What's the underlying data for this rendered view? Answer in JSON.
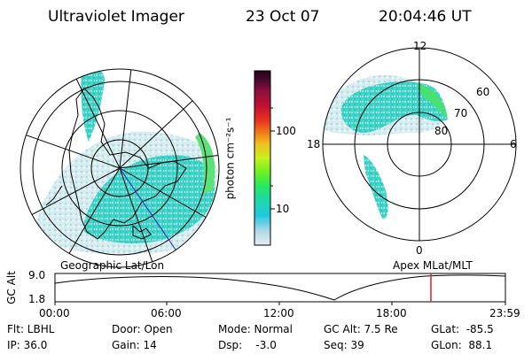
{
  "header": {
    "title": "Ultraviolet Imager",
    "date": "23 Oct 07",
    "time": "20:04:46 UT"
  },
  "left_map": {
    "label": "Geographic Lat/Lon"
  },
  "right_map": {
    "label": "Apex MLat/MLT",
    "lat_labels": [
      "60",
      "70",
      "80"
    ],
    "mlt_labels": {
      "top": "12",
      "bottom": "0",
      "left": "18",
      "right": "6"
    }
  },
  "colorbar": {
    "unit_label": "photon cm⁻²s⁻¹",
    "ticks": [
      "100",
      "10"
    ],
    "colors": [
      "#e8eef2",
      "#b0d8e8",
      "#1fc8e0",
      "#1fd8a8",
      "#28e860",
      "#6cf020",
      "#c8f020",
      "#f0c020",
      "#f08018",
      "#e83020",
      "#c01030",
      "#901040",
      "#500830",
      "#200818"
    ]
  },
  "altitude_plot": {
    "ylabel": "GC Alt",
    "yticks": [
      "9.0",
      "1.8"
    ],
    "xticks": [
      "00:00",
      "06:00",
      "12:00",
      "18:00",
      "23:59"
    ],
    "marker_color": "#e02020"
  },
  "footer": {
    "filter": "Flt: LBHL",
    "ip": "IP: 36.0",
    "door": "Door: Open",
    "gain": "Gain: 14",
    "mode": "Mode: Normal",
    "dsp": "Dsp:    -3.0",
    "gc_alt": "GC Alt: 7.5 Re",
    "seq": "Seq: 39",
    "glat": "GLat:  -85.5",
    "glon": "GLon:  88.1"
  }
}
